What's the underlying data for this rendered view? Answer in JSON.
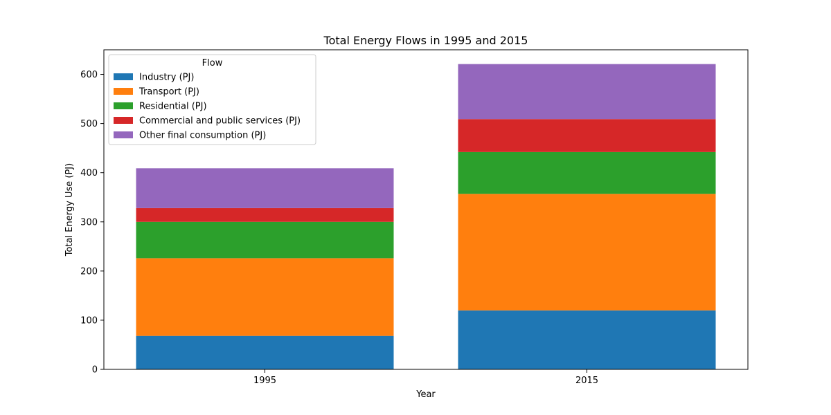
{
  "chart_data": {
    "type": "bar",
    "stacked": true,
    "title": "Total Energy Flows in 1995 and 2015",
    "xlabel": "Year",
    "ylabel": "Total Energy Use (PJ)",
    "categories": [
      "1995",
      "2015"
    ],
    "ylim": [
      0,
      650
    ],
    "yticks": [
      0,
      100,
      200,
      300,
      400,
      500,
      600
    ],
    "grid": false,
    "legend": {
      "title": "Flow",
      "placement": "upper-left"
    },
    "series": [
      {
        "name": "Industry (PJ)",
        "color": "#1f77b4",
        "values": [
          68,
          120
        ]
      },
      {
        "name": "Transport (PJ)",
        "color": "#ff7f0e",
        "values": [
          158,
          237
        ]
      },
      {
        "name": "Residential (PJ)",
        "color": "#2ca02c",
        "values": [
          74,
          85
        ]
      },
      {
        "name": "Commercial and public services (PJ)",
        "color": "#d62728",
        "values": [
          28,
          67
        ]
      },
      {
        "name": "Other final consumption (PJ)",
        "color": "#9467bd",
        "values": [
          81,
          112
        ]
      }
    ]
  }
}
